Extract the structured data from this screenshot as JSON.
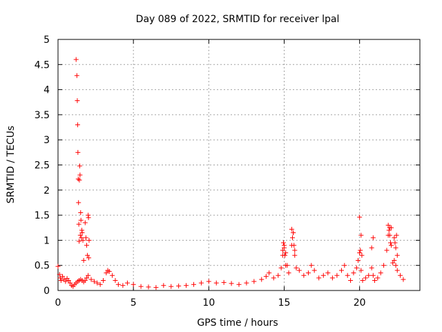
{
  "chart_data": {
    "type": "scatter",
    "title": "Day 089 of 2022, SRMTID for receiver lpal",
    "xlabel": "GPS time / hours",
    "ylabel": "SRMTID / TECUs",
    "xlim": [
      0,
      24
    ],
    "ylim": [
      0,
      5
    ],
    "xticks": [
      0,
      5,
      10,
      15,
      20
    ],
    "xtick_labels": [
      "0",
      "5",
      "10",
      "15",
      "20"
    ],
    "yticks": [
      0,
      0.5,
      1,
      1.5,
      2,
      2.5,
      3,
      3.5,
      4,
      4.5,
      5
    ],
    "ytick_labels": [
      "0",
      "0.5",
      "1",
      "1.5",
      "2",
      "2.5",
      "3",
      "3.5",
      "4",
      "4.5",
      "5"
    ],
    "grid": true,
    "marker": "+",
    "marker_color": "#ff0000",
    "series": [
      {
        "name": "lpal",
        "x": [
          0.0,
          0.1,
          0.15,
          0.2,
          0.3,
          0.4,
          0.5,
          0.6,
          0.7,
          0.8,
          0.9,
          1.0,
          1.1,
          1.2,
          1.3,
          1.4,
          1.5,
          1.6,
          1.7,
          1.8,
          1.9,
          2.0,
          2.2,
          2.4,
          2.6,
          2.8,
          3.0,
          3.2,
          3.3,
          3.4,
          3.6,
          3.8,
          4.0,
          4.3,
          4.6,
          5.0,
          5.5,
          6.0,
          6.5,
          7.0,
          7.5,
          8.0,
          8.5,
          9.0,
          9.5,
          10.0,
          10.5,
          11.0,
          11.5,
          12.0,
          12.5,
          13.0,
          13.5,
          13.8,
          14.0,
          14.3,
          14.6,
          14.8,
          14.9,
          15.0,
          15.1,
          15.2,
          15.3,
          15.5,
          15.6,
          15.7,
          15.8,
          16.0,
          16.3,
          16.6,
          16.8,
          17.0,
          17.3,
          17.6,
          17.9,
          18.2,
          18.5,
          18.8,
          19.0,
          19.2,
          19.4,
          19.6,
          19.8,
          19.9,
          20.0,
          20.1,
          20.2,
          20.4,
          20.6,
          20.8,
          20.9,
          21.0,
          21.2,
          21.4,
          21.6,
          21.8,
          21.9,
          22.0,
          22.1,
          22.2,
          22.3,
          22.4,
          22.5,
          22.7,
          22.9,
          1.2,
          1.25,
          1.28,
          1.3,
          1.32,
          1.34,
          1.36,
          1.38,
          1.4,
          1.42,
          1.44,
          1.46,
          1.48,
          1.5,
          1.52,
          1.55,
          1.58,
          1.6,
          1.65,
          1.7,
          1.8,
          1.85,
          1.9,
          1.95,
          2.0,
          2.02,
          2.04,
          2.06,
          14.9,
          14.95,
          15.0,
          15.05,
          15.1,
          15.5,
          15.55,
          15.6,
          15.65,
          15.7,
          20.0,
          20.05,
          20.1,
          20.15,
          20.8,
          20.9,
          21.9,
          21.95,
          22.0,
          22.05,
          22.1,
          22.3,
          22.35,
          22.4,
          22.45,
          22.5
        ],
        "y": [
          0.48,
          0.32,
          0.25,
          0.2,
          0.28,
          0.22,
          0.18,
          0.24,
          0.2,
          0.15,
          0.1,
          0.08,
          0.12,
          0.15,
          0.18,
          0.2,
          0.22,
          0.2,
          0.17,
          0.2,
          0.25,
          0.3,
          0.22,
          0.18,
          0.15,
          0.12,
          0.2,
          0.35,
          0.4,
          0.38,
          0.3,
          0.2,
          0.12,
          0.1,
          0.15,
          0.12,
          0.08,
          0.07,
          0.06,
          0.1,
          0.08,
          0.09,
          0.1,
          0.12,
          0.15,
          0.18,
          0.15,
          0.16,
          0.14,
          0.12,
          0.15,
          0.18,
          0.22,
          0.28,
          0.35,
          0.25,
          0.3,
          0.45,
          0.7,
          0.9,
          0.75,
          0.5,
          0.35,
          0.9,
          1.15,
          0.8,
          0.45,
          0.4,
          0.3,
          0.35,
          0.5,
          0.4,
          0.25,
          0.3,
          0.35,
          0.25,
          0.3,
          0.4,
          0.5,
          0.3,
          0.2,
          0.35,
          0.45,
          0.6,
          0.75,
          0.4,
          0.2,
          0.25,
          0.3,
          0.45,
          0.3,
          0.2,
          0.25,
          0.35,
          0.5,
          0.8,
          1.1,
          1.25,
          0.9,
          0.55,
          0.6,
          0.5,
          0.4,
          0.3,
          0.22,
          4.6,
          4.28,
          3.78,
          3.3,
          2.75,
          2.22,
          1.75,
          1.32,
          0.98,
          2.2,
          2.48,
          2.3,
          1.1,
          1.55,
          1.4,
          1.05,
          1.2,
          1.15,
          1.0,
          0.6,
          1.35,
          1.05,
          0.9,
          0.7,
          1.5,
          1.45,
          0.65,
          1.0,
          0.8,
          0.95,
          0.85,
          0.7,
          0.5,
          1.22,
          1.05,
          1.15,
          0.9,
          0.7,
          1.46,
          0.8,
          1.1,
          0.7,
          0.85,
          1.05,
          1.3,
          1.2,
          1.1,
          0.95,
          1.25,
          1.05,
          0.95,
          0.85,
          1.1,
          0.7
        ]
      }
    ]
  }
}
